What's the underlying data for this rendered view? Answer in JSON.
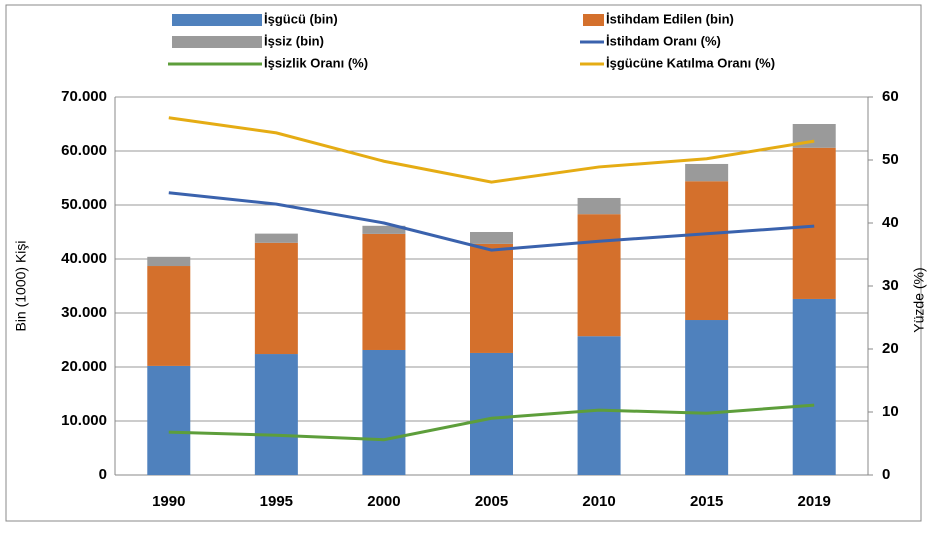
{
  "chart_data": {
    "type": "bar",
    "categories": [
      "1990",
      "1995",
      "2000",
      "2005",
      "2010",
      "2015",
      "2019"
    ],
    "series": [
      {
        "name": "İşgücü (bin)",
        "color": "#4f81bd",
        "type": "bar",
        "values": [
          20200,
          22400,
          23150,
          22600,
          25700,
          28700,
          32600
        ]
      },
      {
        "name": "İstihdam Edilen (bin)",
        "color": "#d4702c",
        "type": "bar",
        "values": [
          18500,
          20600,
          21500,
          20200,
          22600,
          25700,
          28000
        ]
      },
      {
        "name": "İşsiz (bin)",
        "color": "#9a9a9a",
        "type": "bar",
        "values": [
          1700,
          1700,
          1500,
          2200,
          3000,
          3200,
          4400
        ]
      },
      {
        "name": "İstihdam Oranı (%)",
        "color": "#3a62ad",
        "type": "line",
        "axis": "y2",
        "values": [
          44.8,
          43.0,
          40.0,
          35.7,
          37.1,
          38.3,
          39.5
        ]
      },
      {
        "name": "İşsizlik Oranı (%)",
        "color": "#5d9e3b",
        "type": "line",
        "axis": "y2",
        "values": [
          6.8,
          6.3,
          5.6,
          9.0,
          10.3,
          9.8,
          11.1
        ]
      },
      {
        "name": "İşgücüne Katılma Oranı (%)",
        "color": "#e5ac14",
        "type": "line",
        "axis": "y2",
        "values": [
          56.7,
          54.3,
          49.8,
          46.5,
          48.9,
          50.2,
          53.0
        ]
      }
    ],
    "ylabel": "Bin (1000) Kişi",
    "y2label": "Yüzde (%)",
    "ylim": [
      0,
      70000
    ],
    "yticks": [
      0,
      {
        "value": 10000,
        "label": "10.000"
      },
      {
        "value": 20000,
        "label": "20.000"
      },
      {
        "value": 30000,
        "label": "30.000"
      },
      {
        "value": 40000,
        "label": "40.000"
      },
      {
        "value": 50000,
        "label": "50.000"
      },
      {
        "value": 60000,
        "label": "60.000"
      },
      {
        "value": 70000,
        "label": "70.000"
      }
    ],
    "y2lim": [
      0,
      60
    ],
    "y2ticks": [
      0,
      10,
      20,
      30,
      40,
      50,
      60
    ],
    "grid": true,
    "legend": "top"
  }
}
